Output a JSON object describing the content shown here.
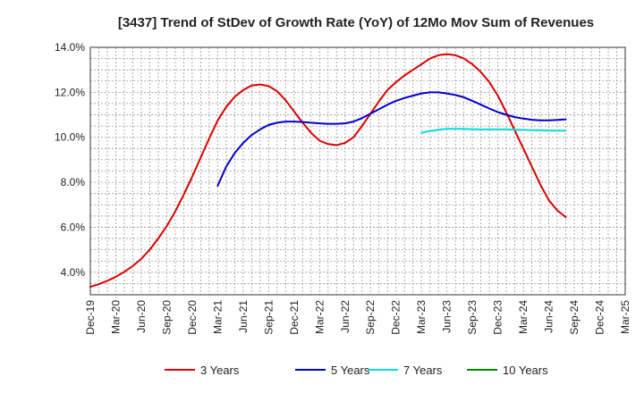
{
  "chart_data": {
    "type": "line",
    "title": "[3437]  Trend of StDev of Growth Rate (YoY) of 12Mo Mov Sum of Revenues",
    "xlabel": "",
    "ylabel": "",
    "ylim": [
      3.0,
      14.0
    ],
    "y_ticks": [
      4.0,
      6.0,
      8.0,
      10.0,
      12.0,
      14.0
    ],
    "y_tick_labels": [
      "4.0%",
      "6.0%",
      "8.0%",
      "10.0%",
      "12.0%",
      "14.0%"
    ],
    "x_tick_labels": [
      "Dec-19",
      "Mar-20",
      "Jun-20",
      "Sep-20",
      "Dec-20",
      "Mar-21",
      "Jun-21",
      "Sep-21",
      "Dec-21",
      "Mar-22",
      "Jun-22",
      "Sep-22",
      "Dec-22",
      "Mar-23",
      "Jun-23",
      "Sep-23",
      "Dec-23",
      "Mar-24",
      "Jun-24",
      "Sep-24",
      "Dec-24",
      "Mar-25"
    ],
    "grid": true,
    "legend_position": "bottom",
    "series": [
      {
        "name": "3 Years",
        "color": "#dd0000",
        "start_index": 0,
        "values": [
          3.35,
          3.47,
          3.62,
          3.8,
          4.02,
          4.28,
          4.6,
          5.0,
          5.5,
          6.05,
          6.7,
          7.45,
          8.25,
          9.1,
          9.95,
          10.75,
          11.35,
          11.8,
          12.1,
          12.3,
          12.35,
          12.28,
          12.05,
          11.65,
          11.15,
          10.65,
          10.2,
          9.85,
          9.7,
          9.65,
          9.75,
          10.0,
          10.5,
          11.05,
          11.6,
          12.1,
          12.45,
          12.75,
          13.0,
          13.25,
          13.5,
          13.65,
          13.7,
          13.65,
          13.5,
          13.25,
          12.9,
          12.45,
          11.85,
          11.1,
          10.3,
          9.5,
          8.7,
          7.9,
          7.2,
          6.75,
          6.45
        ]
      },
      {
        "name": "5 Years",
        "color": "#0000cc",
        "start_index": 15,
        "values": [
          7.85,
          8.7,
          9.3,
          9.75,
          10.1,
          10.35,
          10.55,
          10.65,
          10.7,
          10.7,
          10.68,
          10.65,
          10.62,
          10.6,
          10.6,
          10.62,
          10.7,
          10.85,
          11.05,
          11.25,
          11.45,
          11.62,
          11.75,
          11.85,
          11.95,
          12.0,
          12.0,
          11.95,
          11.88,
          11.78,
          11.62,
          11.45,
          11.28,
          11.12,
          11.0,
          10.9,
          10.83,
          10.78,
          10.75,
          10.75,
          10.77,
          10.8
        ]
      },
      {
        "name": "7 Years",
        "color": "#00dddd",
        "start_index": 39,
        "values": [
          10.2,
          10.28,
          10.34,
          10.38,
          10.38,
          10.37,
          10.36,
          10.35,
          10.35,
          10.35,
          10.35,
          10.34,
          10.33,
          10.32,
          10.31,
          10.3,
          10.3,
          10.3
        ]
      },
      {
        "name": "10 Years",
        "color": "#008800",
        "start_index": 0,
        "values": []
      }
    ]
  }
}
